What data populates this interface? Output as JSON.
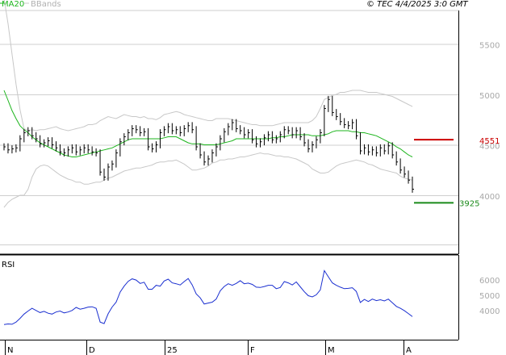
{
  "header": {
    "legend_ma": "MA20",
    "legend_bb": "BBands",
    "copyright": "© TEC 4/4/2025 3:0 GMT"
  },
  "colors": {
    "ma": "#1db51d",
    "bbands": "#c8c8c8",
    "price": "#000000",
    "rsi": "#1a2fd0",
    "resistance": "#cc0000",
    "support": "#1a8a1a",
    "grid": "#cfcfcf",
    "axis": "#000000"
  },
  "chart_data": [
    {
      "type": "line",
      "panel": "price",
      "yticks": [
        "5500",
        "5000",
        "4500",
        "4000"
      ],
      "ylim": [
        3520,
        5750
      ],
      "resistance": {
        "value": 4551,
        "label": "4551"
      },
      "support": {
        "value": 3925,
        "label": "3925"
      },
      "close": [
        4480,
        4450,
        4460,
        4470,
        4560,
        4620,
        4640,
        4590,
        4560,
        4510,
        4520,
        4540,
        4500,
        4470,
        4430,
        4420,
        4450,
        4470,
        4430,
        4450,
        4470,
        4450,
        4430,
        4420,
        4230,
        4180,
        4280,
        4310,
        4420,
        4530,
        4580,
        4620,
        4660,
        4650,
        4620,
        4630,
        4480,
        4460,
        4500,
        4620,
        4650,
        4680,
        4640,
        4650,
        4620,
        4660,
        4690,
        4650,
        4480,
        4400,
        4330,
        4360,
        4420,
        4480,
        4560,
        4630,
        4680,
        4720,
        4660,
        4640,
        4600,
        4620,
        4550,
        4510,
        4530,
        4570,
        4600,
        4550,
        4560,
        4600,
        4650,
        4640,
        4600,
        4640,
        4580,
        4520,
        4460,
        4500,
        4550,
        4620,
        4860,
        4950,
        4820,
        4780,
        4730,
        4700,
        4690,
        4720,
        4590,
        4440,
        4470,
        4430,
        4450,
        4420,
        4470,
        4440,
        4490,
        4400,
        4330,
        4250,
        4210,
        4150,
        4060
      ],
      "ma20": [
        5040,
        4940,
        4840,
        4760,
        4690,
        4650,
        4620,
        4580,
        4550,
        4520,
        4500,
        4480,
        4460,
        4440,
        4420,
        4400,
        4390,
        4380,
        4380,
        4390,
        4400,
        4410,
        4420,
        4430,
        4440,
        4450,
        4460,
        4470,
        4490,
        4510,
        4530,
        4550,
        4560,
        4560,
        4560,
        4560,
        4560,
        4560,
        4560,
        4560,
        4570,
        4580,
        4580,
        4580,
        4560,
        4540,
        4520,
        4510,
        4510,
        4510,
        4500,
        4500,
        4500,
        4500,
        4510,
        4520,
        4530,
        4540,
        4560,
        4560,
        4560,
        4560,
        4560,
        4560,
        4560,
        4560,
        4560,
        4570,
        4570,
        4580,
        4580,
        4590,
        4600,
        4600,
        4600,
        4600,
        4600,
        4590,
        4590,
        4590,
        4600,
        4610,
        4630,
        4640,
        4640,
        4640,
        4640,
        4630,
        4630,
        4620,
        4620,
        4610,
        4600,
        4590,
        4570,
        4550,
        4530,
        4510,
        4480,
        4460,
        4430,
        4400,
        4380
      ],
      "bb_upper": [
        5950,
        5700,
        5400,
        5100,
        4850,
        4660,
        4640,
        4650,
        4640,
        4650,
        4650,
        4660,
        4670,
        4680,
        4660,
        4650,
        4640,
        4650,
        4660,
        4670,
        4680,
        4700,
        4700,
        4710,
        4740,
        4760,
        4780,
        4770,
        4760,
        4780,
        4800,
        4790,
        4780,
        4780,
        4770,
        4780,
        4760,
        4760,
        4750,
        4770,
        4800,
        4810,
        4820,
        4830,
        4820,
        4800,
        4790,
        4780,
        4770,
        4760,
        4750,
        4740,
        4740,
        4760,
        4760,
        4760,
        4760,
        4750,
        4740,
        4730,
        4720,
        4710,
        4700,
        4700,
        4690,
        4690,
        4690,
        4690,
        4700,
        4710,
        4720,
        4720,
        4720,
        4720,
        4720,
        4720,
        4720,
        4740,
        4780,
        4860,
        4950,
        4970,
        4990,
        5000,
        5020,
        5020,
        5030,
        5040,
        5040,
        5040,
        5030,
        5020,
        5020,
        5020,
        5010,
        5000,
        4990,
        4980,
        4960,
        4940,
        4920,
        4900,
        4880
      ],
      "bb_lower": [
        3880,
        3930,
        3960,
        3980,
        4000,
        4000,
        4060,
        4180,
        4260,
        4290,
        4300,
        4290,
        4260,
        4230,
        4200,
        4180,
        4160,
        4150,
        4130,
        4130,
        4110,
        4110,
        4120,
        4130,
        4130,
        4150,
        4170,
        4180,
        4200,
        4220,
        4240,
        4250,
        4260,
        4270,
        4270,
        4280,
        4290,
        4300,
        4320,
        4330,
        4330,
        4340,
        4340,
        4350,
        4330,
        4310,
        4280,
        4250,
        4250,
        4260,
        4270,
        4290,
        4320,
        4330,
        4350,
        4350,
        4360,
        4360,
        4370,
        4380,
        4380,
        4390,
        4400,
        4410,
        4420,
        4410,
        4410,
        4400,
        4390,
        4390,
        4380,
        4380,
        4370,
        4360,
        4340,
        4320,
        4300,
        4260,
        4240,
        4220,
        4220,
        4230,
        4260,
        4290,
        4310,
        4320,
        4330,
        4340,
        4350,
        4340,
        4330,
        4310,
        4300,
        4280,
        4260,
        4250,
        4240,
        4230,
        4220,
        4190,
        4170,
        4160,
        4150
      ]
    },
    {
      "type": "line",
      "panel": "rsi",
      "title": "RSI",
      "yticks": [
        "6000",
        "5000",
        "4000"
      ],
      "xlabels": [
        "N",
        "D",
        "25",
        "F",
        "M",
        "A"
      ],
      "values": [
        3040,
        3080,
        3060,
        3200,
        3440,
        3720,
        3920,
        4100,
        3960,
        3820,
        3900,
        3780,
        3720,
        3860,
        3920,
        3800,
        3860,
        3960,
        4160,
        4040,
        4100,
        4180,
        4200,
        4100,
        3200,
        3100,
        3740,
        4180,
        4500,
        5160,
        5540,
        5860,
        6020,
        5940,
        5720,
        5800,
        5340,
        5340,
        5600,
        5540,
        5880,
        6000,
        5760,
        5700,
        5620,
        5840,
        6040,
        5620,
        5040,
        4780,
        4380,
        4440,
        4500,
        4700,
        5240,
        5520,
        5700,
        5600,
        5720,
        5900,
        5700,
        5740,
        5660,
        5480,
        5460,
        5520,
        5600,
        5600,
        5380,
        5460,
        5840,
        5760,
        5620,
        5820,
        5500,
        5180,
        4920,
        4840,
        4980,
        5300,
        6560,
        6160,
        5760,
        5600,
        5480,
        5380,
        5400,
        5440,
        5200,
        4480,
        4680,
        4540,
        4700,
        4600,
        4660,
        4580,
        4700,
        4460,
        4220,
        4100,
        3940,
        3760,
        3560
      ]
    }
  ]
}
